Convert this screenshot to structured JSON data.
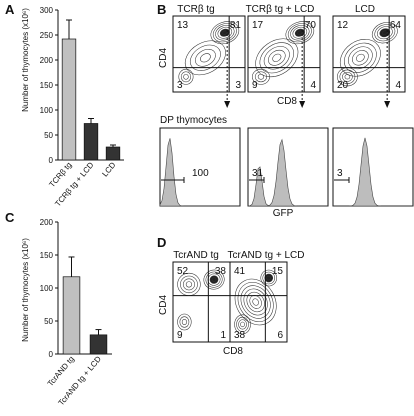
{
  "panels": {
    "A": "A",
    "B": "B",
    "C": "C",
    "D": "D"
  },
  "chart_data": [
    {
      "type": "bar",
      "panel": "A",
      "categories": [
        "TCRβ tg",
        "TCRβ tg + LCD",
        "LCD"
      ],
      "values": [
        242,
        73,
        26
      ],
      "errors": [
        38,
        10,
        4
      ],
      "colors": [
        "#c0c0c0",
        "#333333",
        "#333333"
      ],
      "ylabel": "Number of thymocytes (x10⁶)",
      "ylim": [
        0,
        300
      ],
      "yticks": [
        "0",
        "50",
        "100",
        "150",
        "200",
        "250",
        "300"
      ]
    },
    {
      "type": "bar",
      "panel": "C",
      "categories": [
        "TcrAND tg",
        "TcrAND tg + LCD"
      ],
      "values": [
        117,
        29
      ],
      "errors": [
        30,
        8
      ],
      "colors": [
        "#c0c0c0",
        "#333333"
      ],
      "ylabel": "Number of thymocytes (x10⁶)",
      "ylim": [
        0,
        200
      ],
      "yticks": [
        "0",
        "50",
        "100",
        "150",
        "200"
      ]
    }
  ],
  "flow_B": {
    "titles": [
      "TCRβ tg",
      "TCRβ tg + LCD",
      "LCD"
    ],
    "quadrants": [
      {
        "ul": "13",
        "ur": "81",
        "ll": "3",
        "lr": "3"
      },
      {
        "ul": "17",
        "ur": "70",
        "ll": "9",
        "lr": "4"
      },
      {
        "ul": "12",
        "ur": "64",
        "ll": "20",
        "lr": "4"
      }
    ],
    "y_axis": "CD4",
    "x_axis": "CD8",
    "dp_label": "DP thymocytes",
    "gfp_values": [
      "100",
      "31",
      "3"
    ],
    "gfp_axis": "GFP"
  },
  "flow_D": {
    "titles": [
      "TcrAND tg",
      "TcrAND tg + LCD"
    ],
    "quadrants": [
      {
        "ul": "52",
        "ur": "38",
        "ll": "9",
        "lr": "1"
      },
      {
        "ul": "41",
        "ur": "15",
        "ll": "38",
        "lr": "6"
      }
    ],
    "y_axis": "CD4",
    "x_axis": "CD8"
  }
}
